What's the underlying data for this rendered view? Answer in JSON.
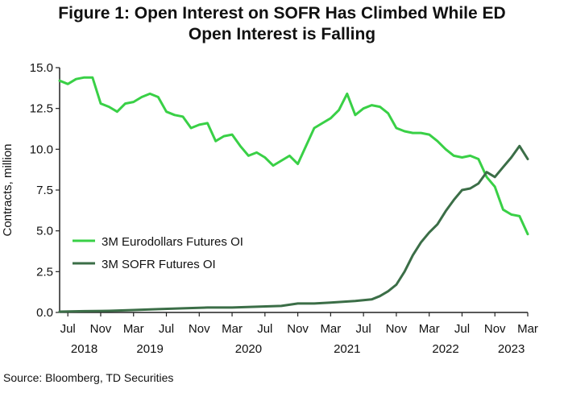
{
  "title": {
    "line1": "Figure 1: Open Interest on SOFR Has Climbed While ED",
    "line2": "Open Interest is Falling"
  },
  "source": "Source: Bloomberg, TD Securities",
  "colors": {
    "eurodollar": "#39d046",
    "sofr": "#3b6e47",
    "axis": "#222222"
  },
  "chart_data": {
    "type": "line",
    "title": "Figure 1: Open Interest on SOFR Has Climbed While ED Open Interest is Falling",
    "ylabel": "Contracts, million",
    "xlabel": "",
    "ylim": [
      0,
      15
    ],
    "yticks": [
      "0.0",
      "2.5",
      "5.0",
      "7.5",
      "10.0",
      "12.5",
      "15.0"
    ],
    "xlim": [
      "2018-06",
      "2023-03"
    ],
    "xticks": [
      {
        "label": "Jul",
        "date": "2018-07"
      },
      {
        "label": "Nov",
        "date": "2018-11"
      },
      {
        "label": "Mar",
        "date": "2019-03"
      },
      {
        "label": "Jul",
        "date": "2019-07"
      },
      {
        "label": "Nov",
        "date": "2019-11"
      },
      {
        "label": "Mar",
        "date": "2020-03"
      },
      {
        "label": "Jul",
        "date": "2020-07"
      },
      {
        "label": "Nov",
        "date": "2020-11"
      },
      {
        "label": "Mar",
        "date": "2021-03"
      },
      {
        "label": "Jul",
        "date": "2021-07"
      },
      {
        "label": "Nov",
        "date": "2021-11"
      },
      {
        "label": "Mar",
        "date": "2022-03"
      },
      {
        "label": "Jul",
        "date": "2022-07"
      },
      {
        "label": "Nov",
        "date": "2022-11"
      },
      {
        "label": "Mar",
        "date": "2023-03"
      }
    ],
    "year_labels": [
      {
        "label": "2018",
        "date": "2018-09"
      },
      {
        "label": "2019",
        "date": "2019-05"
      },
      {
        "label": "2020",
        "date": "2020-05"
      },
      {
        "label": "2021",
        "date": "2021-05"
      },
      {
        "label": "2022",
        "date": "2022-05"
      },
      {
        "label": "2023",
        "date": "2023-01"
      }
    ],
    "legend": "middle-left",
    "grid": false,
    "series": [
      {
        "name": "3M Eurodollars Futures OI",
        "x": [
          "2018-06",
          "2018-07",
          "2018-08",
          "2018-09",
          "2018-10",
          "2018-11",
          "2018-12",
          "2019-01",
          "2019-02",
          "2019-03",
          "2019-04",
          "2019-05",
          "2019-06",
          "2019-07",
          "2019-08",
          "2019-09",
          "2019-10",
          "2019-11",
          "2019-12",
          "2020-01",
          "2020-02",
          "2020-03",
          "2020-04",
          "2020-05",
          "2020-06",
          "2020-07",
          "2020-08",
          "2020-09",
          "2020-10",
          "2020-11",
          "2020-12",
          "2021-01",
          "2021-02",
          "2021-03",
          "2021-04",
          "2021-05",
          "2021-06",
          "2021-07",
          "2021-08",
          "2021-09",
          "2021-10",
          "2021-11",
          "2021-12",
          "2022-01",
          "2022-02",
          "2022-03",
          "2022-04",
          "2022-05",
          "2022-06",
          "2022-07",
          "2022-08",
          "2022-09",
          "2022-10",
          "2022-11",
          "2022-12",
          "2023-01",
          "2023-02",
          "2023-03"
        ],
        "values": [
          14.2,
          14.0,
          14.3,
          14.4,
          14.4,
          12.8,
          12.6,
          12.3,
          12.8,
          12.9,
          13.2,
          13.4,
          13.2,
          12.3,
          12.1,
          12.0,
          11.3,
          11.5,
          11.6,
          10.5,
          10.8,
          10.9,
          10.2,
          9.6,
          9.8,
          9.5,
          9.0,
          9.3,
          9.6,
          9.1,
          10.2,
          11.3,
          11.6,
          11.9,
          12.4,
          13.4,
          12.1,
          12.5,
          12.7,
          12.6,
          12.2,
          11.3,
          11.1,
          11.0,
          11.0,
          10.9,
          10.5,
          10.0,
          9.6,
          9.5,
          9.6,
          9.4,
          8.3,
          7.7,
          6.3,
          6.0,
          5.9,
          4.8
        ]
      },
      {
        "name": "3M SOFR Futures OI",
        "x": [
          "2018-06",
          "2018-09",
          "2018-12",
          "2019-03",
          "2019-06",
          "2019-09",
          "2019-12",
          "2020-03",
          "2020-06",
          "2020-09",
          "2020-11",
          "2021-01",
          "2021-03",
          "2021-06",
          "2021-08",
          "2021-09",
          "2021-10",
          "2021-11",
          "2021-12",
          "2022-01",
          "2022-02",
          "2022-03",
          "2022-04",
          "2022-05",
          "2022-06",
          "2022-07",
          "2022-08",
          "2022-09",
          "2022-10",
          "2022-11",
          "2022-12",
          "2023-01",
          "2023-02",
          "2023-03"
        ],
        "values": [
          0.05,
          0.08,
          0.1,
          0.15,
          0.2,
          0.25,
          0.3,
          0.3,
          0.35,
          0.4,
          0.55,
          0.55,
          0.6,
          0.7,
          0.8,
          1.0,
          1.3,
          1.7,
          2.5,
          3.5,
          4.3,
          4.9,
          5.4,
          6.2,
          6.9,
          7.5,
          7.6,
          7.9,
          8.6,
          8.3,
          8.9,
          9.5,
          10.2,
          9.4
        ]
      }
    ]
  }
}
